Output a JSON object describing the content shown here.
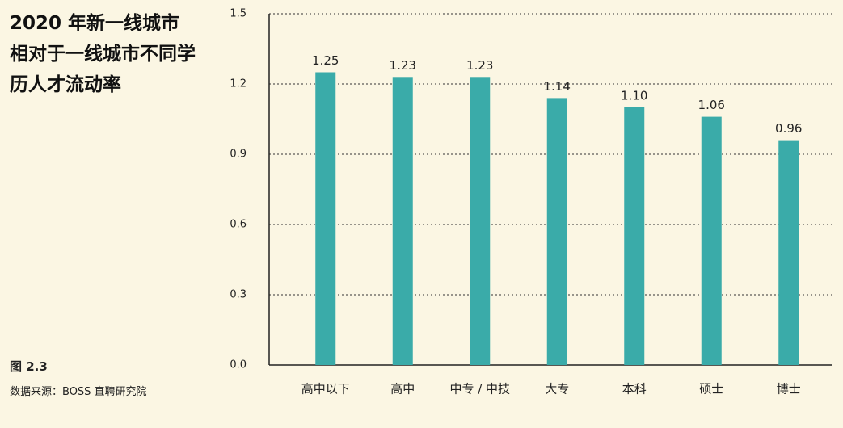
{
  "chart_data": {
    "type": "bar",
    "title": "2020 年新一线城市相对于一线城市不同学历人才流动率",
    "figure_label": "图 2.3",
    "source": "数据来源：BOSS 直聘研究院",
    "categories": [
      "高中以下",
      "高中",
      "中专 / 中技",
      "大专",
      "本科",
      "硕士",
      "博士"
    ],
    "values": [
      1.25,
      1.23,
      1.23,
      1.14,
      1.1,
      1.06,
      0.96
    ],
    "value_labels": [
      "1.25",
      "1.23",
      "1.23",
      "1.14",
      "1.10",
      "1.06",
      "0.96"
    ],
    "color": "#3aaba9",
    "ylim": [
      0,
      1.5
    ],
    "yticks": [
      {
        "value": 0,
        "label": "0.0"
      },
      0.3,
      0.6,
      0.9,
      1.2,
      1.5
    ],
    "grid": true
  }
}
